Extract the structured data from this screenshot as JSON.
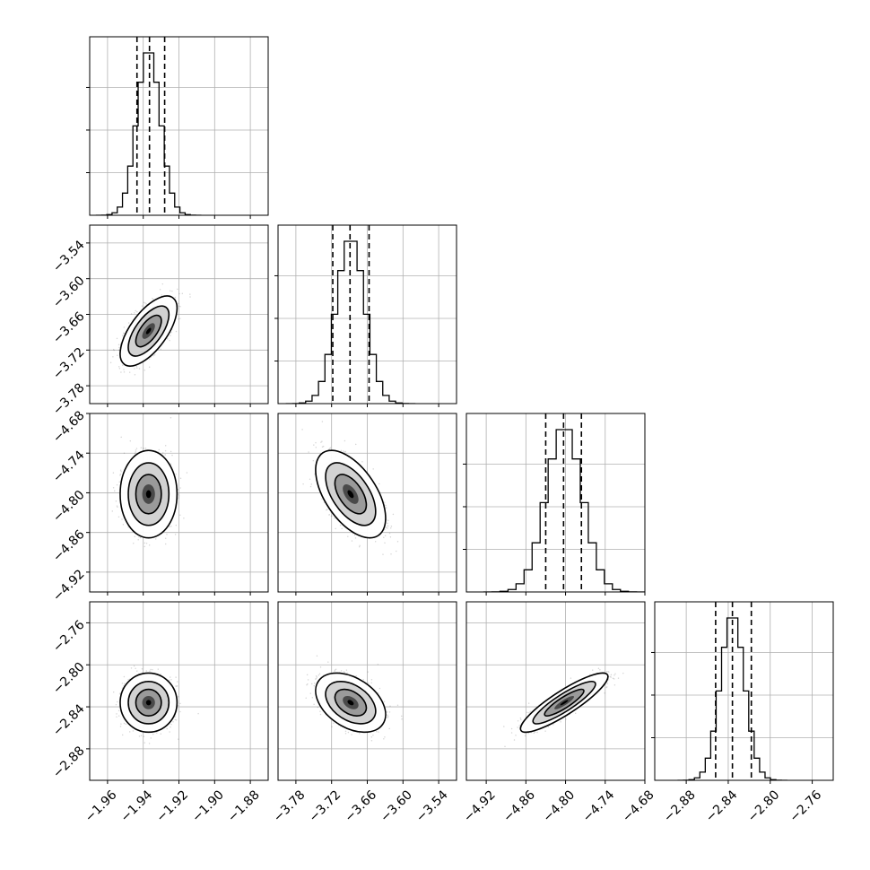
{
  "chart_data": {
    "type": "corner",
    "n_params": 4,
    "params": [
      {
        "ticks": [
          -1.96,
          -1.94,
          -1.92,
          -1.9,
          -1.88
        ],
        "tick_labels": [
          "−1.96",
          "−1.94",
          "−1.92",
          "−1.90",
          "−1.88"
        ],
        "range": [
          -1.97,
          -1.87
        ],
        "mean": -1.937,
        "sd": 0.0065,
        "quantiles": [
          -1.9435,
          -1.9365,
          -1.928
        ]
      },
      {
        "ticks": [
          -3.78,
          -3.72,
          -3.66,
          -3.6,
          -3.54
        ],
        "tick_labels": [
          "−3.78",
          "−3.72",
          "−3.66",
          "−3.60",
          "−3.54"
        ],
        "range": [
          -3.81,
          -3.51
        ],
        "mean": -3.688,
        "sd": 0.024,
        "quantiles": [
          -3.718,
          -3.689,
          -3.657
        ]
      },
      {
        "ticks": [
          -4.92,
          -4.86,
          -4.8,
          -4.74,
          -4.68
        ],
        "tick_labels": [
          "−4.92",
          "−4.86",
          "−4.80",
          "−4.74",
          "−4.68"
        ],
        "range": [
          -4.95,
          -4.68
        ],
        "mean": -4.802,
        "sd": 0.027,
        "quantiles": [
          -4.83,
          -4.803,
          -4.776
        ]
      },
      {
        "ticks": [
          -2.88,
          -2.84,
          -2.8,
          -2.76
        ],
        "tick_labels": [
          "−2.88",
          "−2.84",
          "−2.80",
          "−2.76"
        ],
        "range": [
          -2.91,
          -2.74
        ],
        "mean": -2.836,
        "sd": 0.0115,
        "quantiles": [
          -2.852,
          -2.836,
          -2.818
        ]
      }
    ],
    "correlations": [
      [
        1,
        0.65,
        0.0,
        0.0
      ],
      [
        0.65,
        1,
        -0.55,
        -0.4
      ],
      [
        0.0,
        -0.55,
        1,
        0.88
      ],
      [
        0.0,
        -0.4,
        0.88,
        1
      ]
    ],
    "grid": true,
    "quantile_lines": "dashed",
    "colors": {
      "line": "#000000",
      "grid": "#b0b0b0",
      "scatter": "#6a6a6a",
      "background": "#ffffff"
    }
  }
}
